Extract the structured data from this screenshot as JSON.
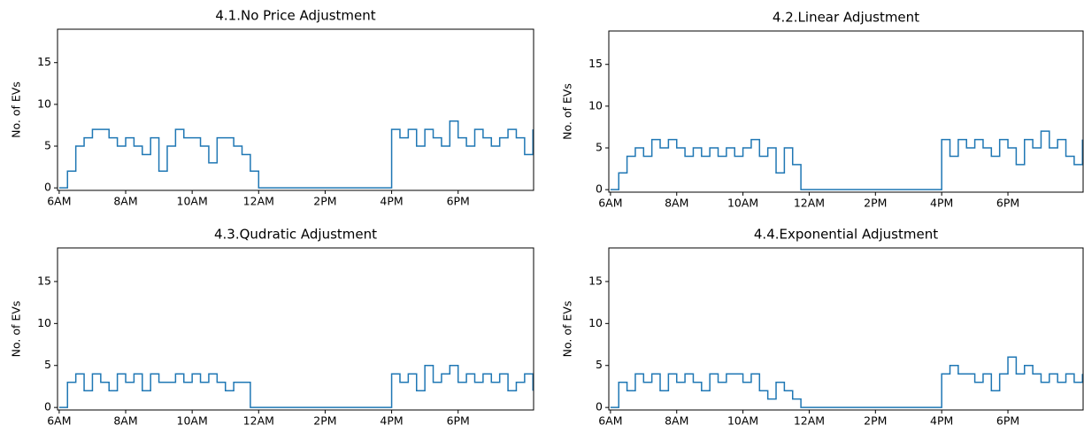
{
  "chart_data": [
    {
      "type": "line",
      "title": "4.1.No Price Adjustment",
      "y_label": "No. of EVs",
      "drawstyle": "steps",
      "x": [
        6,
        6.25,
        6.5,
        6.75,
        7,
        7.25,
        7.5,
        7.75,
        8,
        8.25,
        8.5,
        8.75,
        9,
        9.25,
        9.5,
        9.75,
        10,
        10.25,
        10.5,
        10.75,
        11,
        11.25,
        11.5,
        11.75,
        12,
        12.25,
        12.5,
        12.75,
        13,
        13.25,
        13.5,
        13.75,
        14,
        14.25,
        14.5,
        14.75,
        15,
        15.25,
        15.5,
        15.75,
        16,
        16.25,
        16.5,
        16.75,
        17,
        17.25,
        17.5,
        17.75,
        18,
        18.25,
        18.5,
        18.75,
        19,
        19.25,
        19.5,
        19.75,
        20,
        20.25
      ],
      "series": [
        {
          "color": "#1f77b4",
          "values": [
            0,
            2,
            5,
            6,
            7,
            7,
            6,
            5,
            6,
            5,
            4,
            6,
            2,
            5,
            7,
            6,
            6,
            5,
            3,
            6,
            6,
            5,
            4,
            2,
            0,
            0,
            0,
            0,
            0,
            0,
            0,
            0,
            0,
            0,
            0,
            0,
            0,
            0,
            0,
            0,
            7,
            6,
            7,
            5,
            7,
            6,
            5,
            8,
            6,
            5,
            7,
            6,
            5,
            6,
            7,
            6,
            4,
            7
          ]
        }
      ],
      "xlim": [
        5.95,
        20.27
      ],
      "ylim": [
        -0.3,
        19
      ],
      "xticks": [
        {
          "value": 6,
          "label": "6AM"
        },
        {
          "value": 8,
          "label": "8AM"
        },
        {
          "value": 10,
          "label": "10AM"
        },
        {
          "value": 12,
          "label": "12AM"
        },
        {
          "value": 14,
          "label": "2PM"
        },
        {
          "value": 16,
          "label": "4PM"
        },
        {
          "value": 18,
          "label": "6PM"
        }
      ],
      "yticks": [
        0,
        5,
        10,
        15
      ]
    },
    {
      "type": "line",
      "title": "4.2.Linear Adjustment",
      "y_label": "No. of EVs",
      "drawstyle": "steps",
      "x": [
        6,
        6.25,
        6.5,
        6.75,
        7,
        7.25,
        7.5,
        7.75,
        8,
        8.25,
        8.5,
        8.75,
        9,
        9.25,
        9.5,
        9.75,
        10,
        10.25,
        10.5,
        10.75,
        11,
        11.25,
        11.5,
        11.75,
        12,
        12.25,
        12.5,
        12.75,
        13,
        13.25,
        13.5,
        13.75,
        14,
        14.25,
        14.5,
        14.75,
        15,
        15.25,
        15.5,
        15.75,
        16,
        16.25,
        16.5,
        16.75,
        17,
        17.25,
        17.5,
        17.75,
        18,
        18.25,
        18.5,
        18.75,
        19,
        19.25,
        19.5,
        19.75,
        20,
        20.25
      ],
      "series": [
        {
          "color": "#1f77b4",
          "values": [
            0,
            2,
            4,
            5,
            4,
            6,
            5,
            6,
            5,
            4,
            5,
            4,
            5,
            4,
            5,
            4,
            5,
            6,
            4,
            5,
            2,
            5,
            3,
            0,
            0,
            0,
            0,
            0,
            0,
            0,
            0,
            0,
            0,
            0,
            0,
            0,
            0,
            0,
            0,
            0,
            6,
            4,
            6,
            5,
            6,
            5,
            4,
            6,
            5,
            3,
            6,
            5,
            7,
            5,
            6,
            4,
            3,
            6
          ]
        }
      ],
      "xlim": [
        5.95,
        20.27
      ],
      "ylim": [
        -0.3,
        19
      ],
      "xticks": [
        {
          "value": 6,
          "label": "6AM"
        },
        {
          "value": 8,
          "label": "8AM"
        },
        {
          "value": 10,
          "label": "10AM"
        },
        {
          "value": 12,
          "label": "12AM"
        },
        {
          "value": 14,
          "label": "2PM"
        },
        {
          "value": 16,
          "label": "4PM"
        },
        {
          "value": 18,
          "label": "6PM"
        }
      ],
      "yticks": [
        0,
        5,
        10,
        15
      ]
    },
    {
      "type": "line",
      "title": "4.3.Qudratic Adjustment",
      "y_label": "No. of EVs",
      "drawstyle": "steps",
      "x": [
        6,
        6.25,
        6.5,
        6.75,
        7,
        7.25,
        7.5,
        7.75,
        8,
        8.25,
        8.5,
        8.75,
        9,
        9.25,
        9.5,
        9.75,
        10,
        10.25,
        10.5,
        10.75,
        11,
        11.25,
        11.5,
        11.75,
        12,
        12.25,
        12.5,
        12.75,
        13,
        13.25,
        13.5,
        13.75,
        14,
        14.25,
        14.5,
        14.75,
        15,
        15.25,
        15.5,
        15.75,
        16,
        16.25,
        16.5,
        16.75,
        17,
        17.25,
        17.5,
        17.75,
        18,
        18.25,
        18.5,
        18.75,
        19,
        19.25,
        19.5,
        19.75,
        20,
        20.25
      ],
      "series": [
        {
          "color": "#1f77b4",
          "values": [
            0,
            3,
            4,
            2,
            4,
            3,
            2,
            4,
            3,
            4,
            2,
            4,
            3,
            3,
            4,
            3,
            4,
            3,
            4,
            3,
            2,
            3,
            3,
            0,
            0,
            0,
            0,
            0,
            0,
            0,
            0,
            0,
            0,
            0,
            0,
            0,
            0,
            0,
            0,
            0,
            4,
            3,
            4,
            2,
            5,
            3,
            4,
            5,
            3,
            4,
            3,
            4,
            3,
            4,
            2,
            3,
            4,
            2
          ]
        }
      ],
      "xlim": [
        5.95,
        20.27
      ],
      "ylim": [
        -0.3,
        19
      ],
      "xticks": [
        {
          "value": 6,
          "label": "6AM"
        },
        {
          "value": 8,
          "label": "8AM"
        },
        {
          "value": 10,
          "label": "10AM"
        },
        {
          "value": 12,
          "label": "12AM"
        },
        {
          "value": 14,
          "label": "2PM"
        },
        {
          "value": 16,
          "label": "4PM"
        },
        {
          "value": 18,
          "label": "6PM"
        }
      ],
      "yticks": [
        0,
        5,
        10,
        15
      ]
    },
    {
      "type": "line",
      "title": "4.4.Exponential Adjustment",
      "y_label": "No. of EVs",
      "drawstyle": "steps",
      "x": [
        6,
        6.25,
        6.5,
        6.75,
        7,
        7.25,
        7.5,
        7.75,
        8,
        8.25,
        8.5,
        8.75,
        9,
        9.25,
        9.5,
        9.75,
        10,
        10.25,
        10.5,
        10.75,
        11,
        11.25,
        11.5,
        11.75,
        12,
        12.25,
        12.5,
        12.75,
        13,
        13.25,
        13.5,
        13.75,
        14,
        14.25,
        14.5,
        14.75,
        15,
        15.25,
        15.5,
        15.75,
        16,
        16.25,
        16.5,
        16.75,
        17,
        17.25,
        17.5,
        17.75,
        18,
        18.25,
        18.5,
        18.75,
        19,
        19.25,
        19.5,
        19.75,
        20,
        20.25
      ],
      "series": [
        {
          "color": "#1f77b4",
          "values": [
            0,
            3,
            2,
            4,
            3,
            4,
            2,
            4,
            3,
            4,
            3,
            2,
            4,
            3,
            4,
            4,
            3,
            4,
            2,
            1,
            3,
            2,
            1,
            0,
            0,
            0,
            0,
            0,
            0,
            0,
            0,
            0,
            0,
            0,
            0,
            0,
            0,
            0,
            0,
            0,
            4,
            5,
            4,
            4,
            3,
            4,
            2,
            4,
            6,
            4,
            5,
            4,
            3,
            4,
            3,
            4,
            3,
            4
          ]
        }
      ],
      "xlim": [
        5.95,
        20.27
      ],
      "ylim": [
        -0.3,
        19
      ],
      "xticks": [
        {
          "value": 6,
          "label": "6AM"
        },
        {
          "value": 8,
          "label": "8AM"
        },
        {
          "value": 10,
          "label": "10AM"
        },
        {
          "value": 12,
          "label": "12AM"
        },
        {
          "value": 14,
          "label": "2PM"
        },
        {
          "value": 16,
          "label": "4PM"
        },
        {
          "value": 18,
          "label": "6PM"
        }
      ],
      "yticks": [
        0,
        5,
        10,
        15
      ]
    }
  ]
}
